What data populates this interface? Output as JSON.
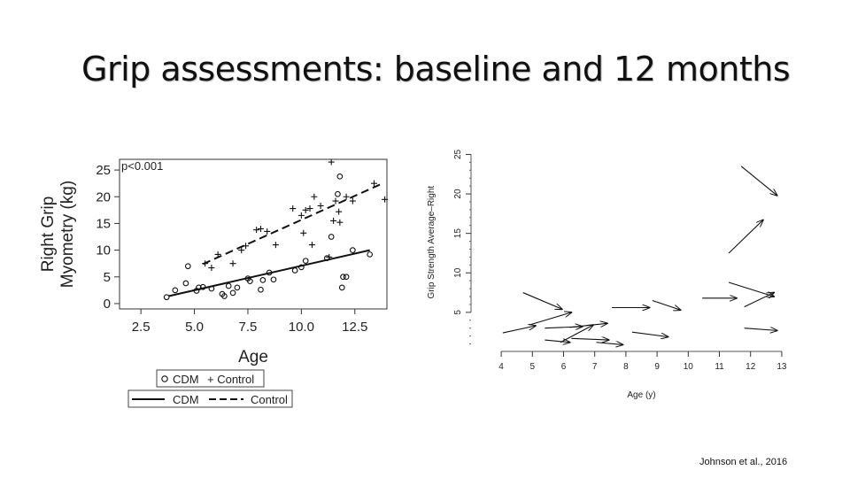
{
  "slide": {
    "title": "Grip assessments: baseline and 12 months",
    "citation": "Johnson et al., 2016"
  },
  "chart_data": [
    {
      "type": "scatter",
      "title": "",
      "xlabel": "Age",
      "ylabel_lines": [
        "Right Grip",
        "Myometry (kg)"
      ],
      "annotation": "p<0.001",
      "xlim": [
        1.5,
        14
      ],
      "ylim": [
        -1,
        27
      ],
      "xticks": [
        2.5,
        5.0,
        7.5,
        10.0,
        12.5
      ],
      "xtick_labels": [
        "2.5",
        "5.0",
        "7.5",
        "10.0",
        "12.5"
      ],
      "yticks": [
        0,
        5,
        10,
        15,
        20,
        25
      ],
      "ytick_labels": [
        "0",
        "5",
        "10",
        "15",
        "20",
        "25"
      ],
      "legend": {
        "placement": "bottom-left",
        "row1": {
          "cdm": "CDM",
          "control": "+ Control"
        },
        "row2": {
          "cdm": "CDM",
          "control": "Control"
        }
      },
      "series": [
        {
          "name": "CDM",
          "marker": "circle",
          "points": [
            [
              3.7,
              1.2
            ],
            [
              4.1,
              2.5
            ],
            [
              4.6,
              3.8
            ],
            [
              4.7,
              7.0
            ],
            [
              5.1,
              2.4
            ],
            [
              5.2,
              3.0
            ],
            [
              5.4,
              3.1
            ],
            [
              5.8,
              2.8
            ],
            [
              6.3,
              1.8
            ],
            [
              6.4,
              1.4
            ],
            [
              6.6,
              3.3
            ],
            [
              6.8,
              2.0
            ],
            [
              7.0,
              3.0
            ],
            [
              7.5,
              4.7
            ],
            [
              7.6,
              4.2
            ],
            [
              8.1,
              2.6
            ],
            [
              8.2,
              4.4
            ],
            [
              8.5,
              5.8
            ],
            [
              8.7,
              4.5
            ],
            [
              9.7,
              6.2
            ],
            [
              10.0,
              6.8
            ],
            [
              10.2,
              8.0
            ],
            [
              11.2,
              8.5
            ],
            [
              11.4,
              12.5
            ],
            [
              11.7,
              20.5
            ],
            [
              11.8,
              23.8
            ],
            [
              11.9,
              3.0
            ],
            [
              11.95,
              5.0
            ],
            [
              12.1,
              5.0
            ],
            [
              12.4,
              10.0
            ],
            [
              13.2,
              9.2
            ]
          ]
        },
        {
          "name": "Control",
          "marker": "plus",
          "points": [
            [
              5.5,
              7.5
            ],
            [
              5.8,
              6.7
            ],
            [
              6.1,
              9.2
            ],
            [
              6.8,
              7.5
            ],
            [
              7.2,
              10.0
            ],
            [
              7.4,
              10.8
            ],
            [
              7.9,
              13.8
            ],
            [
              8.1,
              14.0
            ],
            [
              8.4,
              13.5
            ],
            [
              8.8,
              11.0
            ],
            [
              9.6,
              17.8
            ],
            [
              10.0,
              16.5
            ],
            [
              10.1,
              13.2
            ],
            [
              10.2,
              17.5
            ],
            [
              10.4,
              17.8
            ],
            [
              10.5,
              11.0
            ],
            [
              10.6,
              20.0
            ],
            [
              10.9,
              18.3
            ],
            [
              11.3,
              8.7
            ],
            [
              11.4,
              26.5
            ],
            [
              11.5,
              15.5
            ],
            [
              11.6,
              19.2
            ],
            [
              11.8,
              15.2
            ],
            [
              11.75,
              17.2
            ],
            [
              12.1,
              20.0
            ],
            [
              12.4,
              19.2
            ],
            [
              13.4,
              22.5
            ],
            [
              13.9,
              19.5
            ]
          ]
        }
      ],
      "fit_lines": [
        {
          "name": "CDM",
          "style": "solid",
          "x": [
            3.8,
            13.2
          ],
          "y": [
            1.4,
            10.0
          ]
        },
        {
          "name": "Control",
          "style": "dashed",
          "x": [
            5.4,
            13.8
          ],
          "y": [
            7.4,
            22.5
          ]
        }
      ]
    },
    {
      "type": "arrow",
      "title": "",
      "xlabel": "Age (y)",
      "ylabel": "Grip Strength Average–Right",
      "xlim": [
        3.6,
        13.4
      ],
      "ylim": [
        0.5,
        25.5
      ],
      "xticks": [
        4,
        5,
        6,
        7,
        8,
        9,
        10,
        11,
        12,
        13
      ],
      "xtick_labels": [
        "4",
        "5",
        "6",
        "7",
        "8",
        "9",
        "10",
        "11",
        "12",
        "13"
      ],
      "yticks": [
        5,
        10,
        15,
        20,
        25
      ],
      "ytick_labels": [
        "5",
        "10",
        "15",
        "20",
        "25"
      ],
      "arrows": [
        {
          "x0": 4.05,
          "y0": 2.4,
          "x1": 5.1,
          "y1": 3.3
        },
        {
          "x0": 4.7,
          "y0": 7.5,
          "x1": 5.95,
          "y1": 5.4
        },
        {
          "x0": 4.9,
          "y0": 3.4,
          "x1": 6.25,
          "y1": 5.0
        },
        {
          "x0": 5.4,
          "y0": 3.0,
          "x1": 6.6,
          "y1": 3.2
        },
        {
          "x0": 5.4,
          "y0": 1.5,
          "x1": 6.2,
          "y1": 1.2
        },
        {
          "x0": 5.9,
          "y0": 1.2,
          "x1": 6.95,
          "y1": 3.4
        },
        {
          "x0": 6.2,
          "y0": 3.1,
          "x1": 7.4,
          "y1": 3.6
        },
        {
          "x0": 6.25,
          "y0": 1.7,
          "x1": 7.45,
          "y1": 1.5
        },
        {
          "x0": 7.05,
          "y0": 1.2,
          "x1": 7.9,
          "y1": 0.9
        },
        {
          "x0": 7.55,
          "y0": 5.6,
          "x1": 8.75,
          "y1": 5.6
        },
        {
          "x0": 8.2,
          "y0": 2.5,
          "x1": 9.35,
          "y1": 1.9
        },
        {
          "x0": 8.85,
          "y0": 6.5,
          "x1": 9.75,
          "y1": 5.3
        },
        {
          "x0": 10.45,
          "y0": 6.8,
          "x1": 11.55,
          "y1": 6.8
        },
        {
          "x0": 11.3,
          "y0": 8.8,
          "x1": 12.75,
          "y1": 7.0
        },
        {
          "x0": 11.8,
          "y0": 5.7,
          "x1": 12.75,
          "y1": 7.5
        },
        {
          "x0": 11.8,
          "y0": 3.0,
          "x1": 12.85,
          "y1": 2.7
        },
        {
          "x0": 11.3,
          "y0": 12.5,
          "x1": 12.4,
          "y1": 16.7
        },
        {
          "x0": 11.7,
          "y0": 23.5,
          "x1": 12.85,
          "y1": 19.8
        }
      ]
    }
  ]
}
